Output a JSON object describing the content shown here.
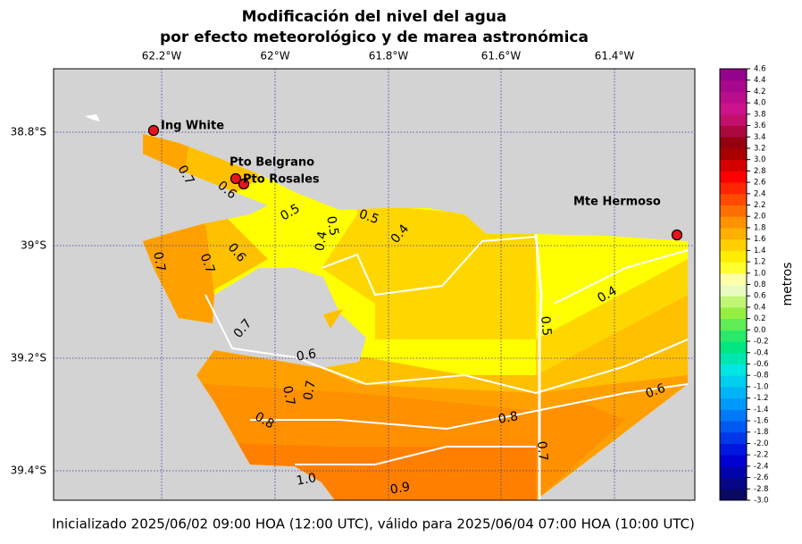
{
  "header": {
    "title_line1": "Modificación del nivel del agua",
    "title_line2": "por efecto meteorológico y de marea astronómica"
  },
  "map": {
    "lon_labels": [
      "62.2°W",
      "62°W",
      "61.8°W",
      "61.6°W",
      "61.4°W"
    ],
    "lat_labels": [
      "38.8°S",
      "39°S",
      "39.2°S",
      "39.4°S"
    ],
    "stations": [
      "Ing White",
      "Pto Belgrano",
      "Pto Rosales",
      "Mte Hermoso"
    ],
    "contour_labels": [
      "0.7",
      "0.6",
      "0.5",
      "0.5",
      "0.5",
      "0.4",
      "0.4",
      "0.6",
      "0.7",
      "0.7",
      "0.7",
      "0.6",
      "0.5",
      "0.4",
      "0.7",
      "0.7",
      "0.8",
      "0.8",
      "0.6",
      "0.7",
      "1.0",
      "0.9"
    ]
  },
  "colorbar": {
    "label": "metros",
    "ticks": [
      "-3.0",
      "-2.8",
      "-2.6",
      "-2.4",
      "-2.2",
      "-2.0",
      "-1.8",
      "-1.6",
      "-1.4",
      "-1.2",
      "-1.0",
      "-0.8",
      "-0.6",
      "-0.4",
      "-0.2",
      "0.0",
      "0.2",
      "0.4",
      "0.6",
      "0.8",
      "1.0",
      "1.2",
      "1.4",
      "1.6",
      "1.8",
      "2.0",
      "2.2",
      "2.4",
      "2.6",
      "2.8",
      "3.0",
      "3.2",
      "3.4",
      "3.6",
      "3.8",
      "4.0",
      "4.2",
      "4.4",
      "4.6"
    ]
  },
  "footer": "Inicializado 2025/06/02 09:00 HOA (12:00 UTC), válido para 2025/06/04 07:00 HOA (10:00 UTC)"
}
